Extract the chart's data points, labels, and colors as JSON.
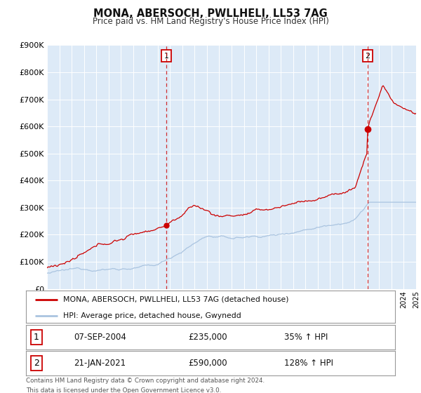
{
  "title": "MONA, ABERSOCH, PWLLHELI, LL53 7AG",
  "subtitle": "Price paid vs. HM Land Registry's House Price Index (HPI)",
  "legend_line1": "MONA, ABERSOCH, PWLLHELI, LL53 7AG (detached house)",
  "legend_line2": "HPI: Average price, detached house, Gwynedd",
  "marker1_date": "07-SEP-2004",
  "marker1_price": 235000,
  "marker1_hpi": "35% ↑ HPI",
  "marker2_date": "21-JAN-2021",
  "marker2_price": 590000,
  "marker2_hpi": "128% ↑ HPI",
  "marker1_x": 2004.69,
  "marker2_x": 2021.06,
  "footnote1": "Contains HM Land Registry data © Crown copyright and database right 2024.",
  "footnote2": "This data is licensed under the Open Government Licence v3.0.",
  "red_color": "#cc0000",
  "blue_color": "#aac4e0",
  "dashed_color": "#cc0000",
  "plot_bg": "#ddeaf7",
  "grid_color": "#ffffff",
  "ylim_max": 900000,
  "ylim_min": 0,
  "xlim_min": 1995,
  "xlim_max": 2025
}
